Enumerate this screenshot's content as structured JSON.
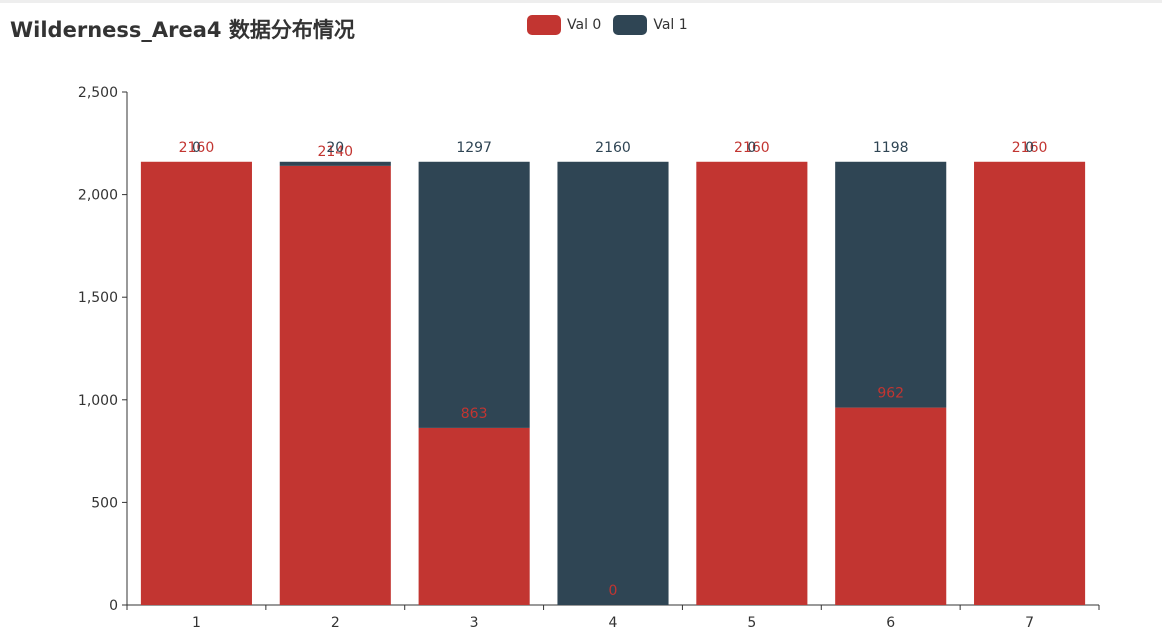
{
  "title": "Wilderness_Area4 数据分布情况",
  "colors": {
    "val0": "#c23531",
    "val1": "#2f4554",
    "axis": "#333333"
  },
  "legend": {
    "items": [
      {
        "label": "Val 0",
        "color": "#c23531"
      },
      {
        "label": "Val 1",
        "color": "#2f4554"
      }
    ],
    "placement": "top-center"
  },
  "chart_data": {
    "type": "bar",
    "stacked": true,
    "categories": [
      "1",
      "2",
      "3",
      "4",
      "5",
      "6",
      "7"
    ],
    "series": [
      {
        "name": "Val 0",
        "values": [
          2160,
          2140,
          863,
          0,
          2160,
          962,
          2160
        ]
      },
      {
        "name": "Val 1",
        "values": [
          0,
          20,
          1297,
          2160,
          0,
          1198,
          0
        ]
      }
    ],
    "ylim": [
      0,
      2500
    ],
    "yticks": [
      0,
      500,
      1000,
      1500,
      2000,
      2500
    ],
    "ytick_labels": [
      "0",
      "500",
      "1,000",
      "1,500",
      "2,000",
      "2,500"
    ],
    "xlabel": "",
    "ylabel": "",
    "grid": false
  }
}
